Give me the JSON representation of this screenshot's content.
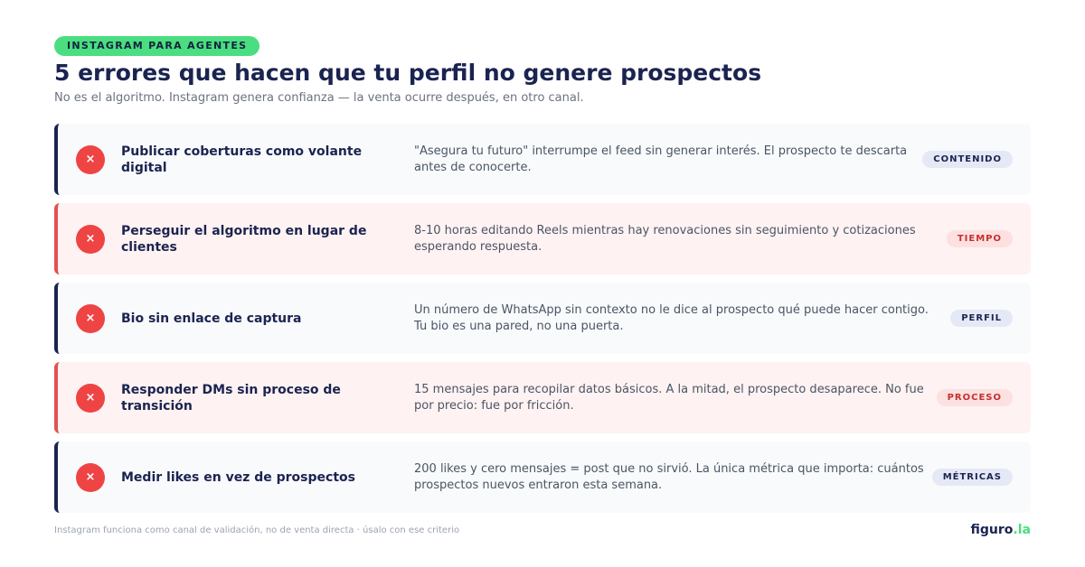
{
  "header": {
    "badge": "INSTAGRAM PARA AGENTES",
    "title": "5 errores que hacen que tu perfil no genere prospectos",
    "subtitle": "No es el algoritmo. Instagram genera confianza — la venta ocurre después, en otro canal."
  },
  "rows": [
    {
      "icon": "×",
      "title": "Publicar coberturas como volante digital",
      "description": "\"Asegura tu futuro\" interrumpe el feed sin generar interés. El prospecto te descarta antes de conocerte.",
      "tag": "CONTENIDO"
    },
    {
      "icon": "×",
      "title": "Perseguir el algoritmo en lugar de clientes",
      "description": "8-10 horas editando Reels mientras hay renovaciones sin seguimiento y cotizaciones esperando respuesta.",
      "tag": "TIEMPO"
    },
    {
      "icon": "×",
      "title": "Bio sin enlace de captura",
      "description": "Un número de WhatsApp sin contexto no le dice al prospecto qué puede hacer contigo. Tu bio es una pared, no una puerta.",
      "tag": "PERFIL"
    },
    {
      "icon": "×",
      "title": "Responder DMs sin proceso de transición",
      "description": "15 mensajes para recopilar datos básicos. A la mitad, el prospecto desaparece. No fue por precio: fue por fricción.",
      "tag": "PROCESO"
    },
    {
      "icon": "×",
      "title": "Medir likes en vez de prospectos",
      "description": "200 likes y cero mensajes = post que no sirvió. La única métrica que importa: cuántos prospectos nuevos entraron esta semana.",
      "tag": "MÉTRICAS"
    }
  ],
  "footer": {
    "note": "Instagram funciona como canal de validación, no de venta directa · úsalo con ese criterio",
    "brand_main": "figuro",
    "brand_accent": ".la"
  },
  "colors": {
    "accent_green": "#4ade80",
    "navy": "#1b2450",
    "error_red": "#ef4444"
  }
}
